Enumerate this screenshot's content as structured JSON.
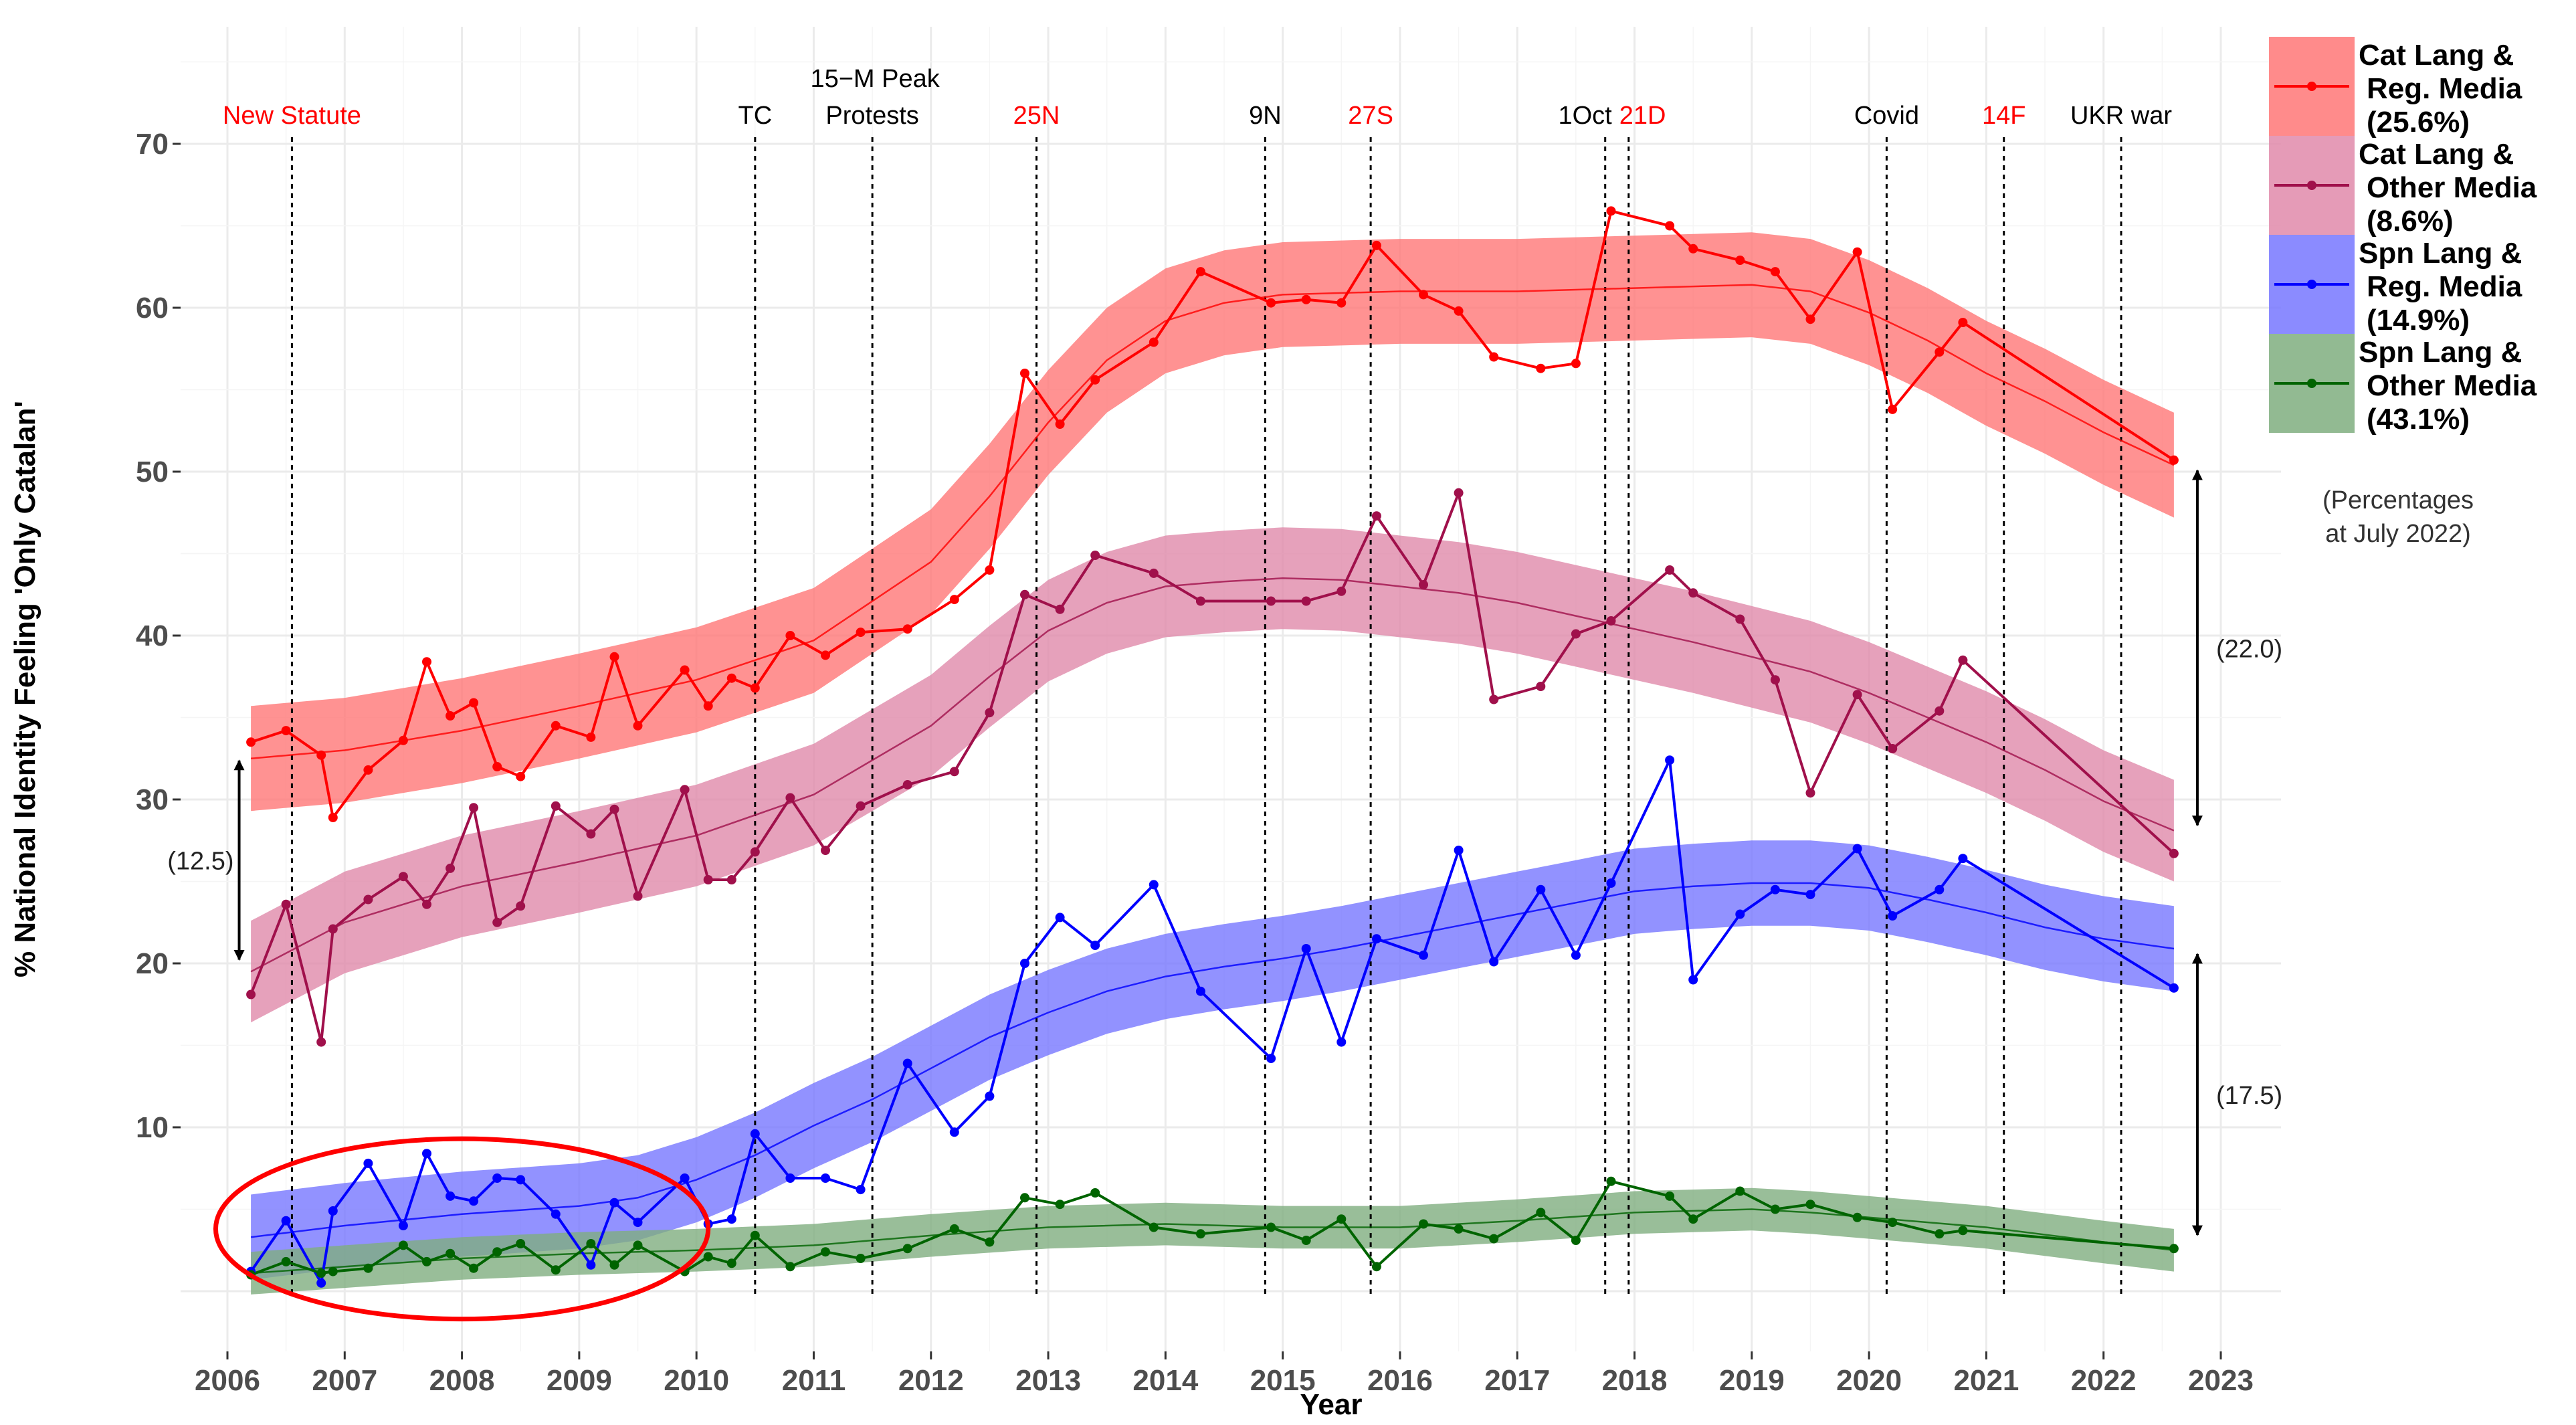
{
  "chart_data": {
    "type": "line",
    "xlabel": "Year",
    "ylabel": "% National Identity Feeling 'Only Catalan'",
    "xlim": [
      2005.6,
      2023.3
    ],
    "ylim": [
      -1,
      73
    ],
    "x_ticks": [
      2006,
      2007,
      2008,
      2009,
      2010,
      2011,
      2012,
      2013,
      2014,
      2015,
      2016,
      2017,
      2018,
      2019,
      2020,
      2021,
      2022,
      2023
    ],
    "y_ticks": [
      10,
      20,
      30,
      40,
      50,
      60,
      70
    ],
    "grid": true,
    "events": [
      {
        "label": "New Statute",
        "x": 2006.55,
        "color": "#ff0000"
      },
      {
        "label": "TC",
        "x": 2010.5,
        "color": "#000000"
      },
      {
        "label": "15−M Peak",
        "label2": "Protests",
        "x": 2011.5,
        "color": "#000000"
      },
      {
        "label": "25N",
        "x": 2012.9,
        "color": "#ff0000"
      },
      {
        "label": "9N",
        "x": 2014.85,
        "color": "#000000"
      },
      {
        "label": "27S",
        "x": 2015.75,
        "color": "#ff0000"
      },
      {
        "label": "1Oct",
        "x": 2017.75,
        "color": "#000000"
      },
      {
        "label": "21D",
        "x": 2017.95,
        "color": "#ff0000"
      },
      {
        "label": "Covid",
        "x": 2020.15,
        "color": "#000000"
      },
      {
        "label": "14F",
        "x": 2021.15,
        "color": "#ff0000"
      },
      {
        "label": "UKR war",
        "x": 2022.15,
        "color": "#000000"
      }
    ],
    "series": [
      {
        "name": "Cat Lang & Reg. Media (25.6%)",
        "legend_lines": [
          "Cat Lang &",
          "Reg. Media",
          "(25.6%)"
        ],
        "color": "#ff0000",
        "band_color": "#ff7777",
        "x": [
          2006.2,
          2006.5,
          2006.8,
          2006.9,
          2007.2,
          2007.5,
          2007.7,
          2007.9,
          2008.1,
          2008.3,
          2008.5,
          2008.8,
          2009.1,
          2009.3,
          2009.5,
          2009.9,
          2010.1,
          2010.3,
          2010.5,
          2010.8,
          2011.1,
          2011.4,
          2011.8,
          2012.2,
          2012.5,
          2012.8,
          2013.1,
          2013.4,
          2013.9,
          2014.3,
          2014.9,
          2015.2,
          2015.5,
          2015.8,
          2016.2,
          2016.5,
          2016.8,
          2017.2,
          2017.5,
          2017.8,
          2018.3,
          2018.5,
          2018.9,
          2019.2,
          2019.5,
          2019.9,
          2020.2,
          2020.6,
          2020.8,
          2022.6
        ],
        "y": [
          33.5,
          34.2,
          32.7,
          28.9,
          31.8,
          33.6,
          38.4,
          35.1,
          35.9,
          32,
          31.4,
          34.5,
          33.8,
          38.7,
          34.5,
          37.9,
          35.7,
          37.4,
          36.8,
          40,
          38.8,
          40.2,
          40.4,
          42.2,
          44,
          56,
          52.9,
          55.6,
          57.9,
          62.2,
          60.3,
          60.5,
          60.3,
          63.8,
          60.8,
          59.8,
          57,
          56.3,
          56.6,
          65.9,
          65,
          63.6,
          62.9,
          62.2,
          59.3,
          63.4,
          53.8,
          57.3,
          59.1,
          50.7
        ],
        "trend": [
          [
            2006.2,
            32.5
          ],
          [
            2007,
            33
          ],
          [
            2008,
            34.2
          ],
          [
            2009,
            35.7
          ],
          [
            2010,
            37.3
          ],
          [
            2011,
            39.7
          ],
          [
            2012,
            44.5
          ],
          [
            2012.5,
            48.5
          ],
          [
            2013,
            53
          ],
          [
            2013.5,
            56.8
          ],
          [
            2014,
            59.2
          ],
          [
            2014.5,
            60.3
          ],
          [
            2015,
            60.8
          ],
          [
            2016,
            61
          ],
          [
            2017,
            61
          ],
          [
            2018,
            61.2
          ],
          [
            2019,
            61.4
          ],
          [
            2019.5,
            61
          ],
          [
            2020,
            59.7
          ],
          [
            2020.5,
            58
          ],
          [
            2021,
            56
          ],
          [
            2021.5,
            54.3
          ],
          [
            2022,
            52.4
          ],
          [
            2022.6,
            50.4
          ]
        ],
        "half_width": 3.2
      },
      {
        "name": "Cat Lang & Other Media (8.6%)",
        "legend_lines": [
          "Cat Lang &",
          "Other Media",
          "(8.6%)"
        ],
        "color": "#a0104b",
        "band_color": "#e08aaa",
        "x": [
          2006.2,
          2006.5,
          2006.8,
          2006.9,
          2007.2,
          2007.5,
          2007.7,
          2007.9,
          2008.1,
          2008.3,
          2008.5,
          2008.8,
          2009.1,
          2009.3,
          2009.5,
          2009.9,
          2010.1,
          2010.3,
          2010.5,
          2010.8,
          2011.1,
          2011.4,
          2011.8,
          2012.2,
          2012.5,
          2012.8,
          2013.1,
          2013.4,
          2013.9,
          2014.3,
          2014.9,
          2015.2,
          2015.5,
          2015.8,
          2016.2,
          2016.5,
          2016.8,
          2017.2,
          2017.5,
          2017.8,
          2018.3,
          2018.5,
          2018.9,
          2019.2,
          2019.5,
          2019.9,
          2020.2,
          2020.6,
          2020.8,
          2022.6
        ],
        "y": [
          18.1,
          23.6,
          15.2,
          22.1,
          23.9,
          25.3,
          23.6,
          25.8,
          29.5,
          22.5,
          23.5,
          29.6,
          27.9,
          29.4,
          24.1,
          30.6,
          25.1,
          25.1,
          26.8,
          30.1,
          26.9,
          29.6,
          30.9,
          31.7,
          35.3,
          42.5,
          41.6,
          44.9,
          43.8,
          42.1,
          42.1,
          42.1,
          42.7,
          47.3,
          43.1,
          48.7,
          36.1,
          36.9,
          40.1,
          40.9,
          44,
          42.6,
          41,
          37.3,
          30.4,
          36.4,
          33.1,
          35.4,
          38.5,
          26.7
        ],
        "trend": [
          [
            2006.2,
            19.5
          ],
          [
            2007,
            22.5
          ],
          [
            2008,
            24.7
          ],
          [
            2009,
            26.2
          ],
          [
            2010,
            27.8
          ],
          [
            2011,
            30.3
          ],
          [
            2012,
            34.5
          ],
          [
            2012.5,
            37.5
          ],
          [
            2013,
            40.3
          ],
          [
            2013.5,
            42
          ],
          [
            2014,
            43
          ],
          [
            2014.5,
            43.3
          ],
          [
            2015,
            43.5
          ],
          [
            2015.5,
            43.4
          ],
          [
            2016,
            43
          ],
          [
            2016.5,
            42.6
          ],
          [
            2017,
            42
          ],
          [
            2017.5,
            41.2
          ],
          [
            2018,
            40.4
          ],
          [
            2018.5,
            39.6
          ],
          [
            2019,
            38.7
          ],
          [
            2019.5,
            37.8
          ],
          [
            2020,
            36.5
          ],
          [
            2020.5,
            35
          ],
          [
            2021,
            33.5
          ],
          [
            2021.5,
            31.8
          ],
          [
            2022,
            29.9
          ],
          [
            2022.6,
            28.1
          ]
        ],
        "half_width": 3.1
      },
      {
        "name": "Spn Lang & Reg. Media (14.9%)",
        "legend_lines": [
          "Spn Lang &",
          "Reg. Media",
          "(14.9%)"
        ],
        "color": "#0000ff",
        "band_color": "#7777ff",
        "x": [
          2006.2,
          2006.5,
          2006.8,
          2006.9,
          2007.2,
          2007.5,
          2007.7,
          2007.9,
          2008.1,
          2008.3,
          2008.5,
          2008.8,
          2009.1,
          2009.3,
          2009.5,
          2009.9,
          2010.1,
          2010.3,
          2010.5,
          2010.8,
          2011.1,
          2011.4,
          2011.8,
          2012.2,
          2012.5,
          2012.8,
          2013.1,
          2013.4,
          2013.9,
          2014.3,
          2014.9,
          2015.2,
          2015.5,
          2015.8,
          2016.2,
          2016.5,
          2016.8,
          2017.2,
          2017.5,
          2017.8,
          2018.3,
          2018.5,
          2018.9,
          2019.2,
          2019.5,
          2019.9,
          2020.2,
          2020.6,
          2020.8,
          2022.6
        ],
        "y": [
          1.2,
          4.3,
          0.5,
          4.9,
          7.8,
          4,
          8.4,
          5.8,
          5.5,
          6.9,
          6.8,
          4.7,
          1.6,
          5.4,
          4.2,
          6.9,
          4.1,
          4.4,
          9.6,
          6.9,
          6.9,
          6.2,
          13.9,
          9.7,
          11.9,
          20,
          22.8,
          21.1,
          24.8,
          18.3,
          14.2,
          20.9,
          15.2,
          21.5,
          20.5,
          26.9,
          20.1,
          24.5,
          20.5,
          24.9,
          32.4,
          19,
          23,
          24.5,
          24.2,
          27,
          22.9,
          24.5,
          26.4,
          18.5
        ],
        "trend": [
          [
            2006.2,
            3.3
          ],
          [
            2007,
            4
          ],
          [
            2008,
            4.7
          ],
          [
            2009,
            5.2
          ],
          [
            2009.5,
            5.7
          ],
          [
            2010,
            6.8
          ],
          [
            2010.5,
            8.3
          ],
          [
            2011,
            10.1
          ],
          [
            2011.5,
            11.7
          ],
          [
            2012,
            13.6
          ],
          [
            2012.5,
            15.5
          ],
          [
            2013,
            17
          ],
          [
            2013.5,
            18.3
          ],
          [
            2014,
            19.2
          ],
          [
            2014.5,
            19.8
          ],
          [
            2015,
            20.3
          ],
          [
            2015.5,
            20.9
          ],
          [
            2016,
            21.6
          ],
          [
            2016.5,
            22.3
          ],
          [
            2017,
            23
          ],
          [
            2017.5,
            23.7
          ],
          [
            2018,
            24.4
          ],
          [
            2018.5,
            24.7
          ],
          [
            2019,
            24.9
          ],
          [
            2019.5,
            24.9
          ],
          [
            2020,
            24.6
          ],
          [
            2020.5,
            23.9
          ],
          [
            2021,
            23.1
          ],
          [
            2021.5,
            22.2
          ],
          [
            2022,
            21.5
          ],
          [
            2022.6,
            20.9
          ]
        ],
        "half_width": 2.6
      },
      {
        "name": "Spn Lang & Other Media (43.1%)",
        "legend_lines": [
          "Spn Lang &",
          "Other Media",
          "(43.1%)"
        ],
        "color": "#006400",
        "band_color": "#7fae7f",
        "x": [
          2006.2,
          2006.5,
          2006.8,
          2006.9,
          2007.2,
          2007.5,
          2007.7,
          2007.9,
          2008.1,
          2008.3,
          2008.5,
          2008.8,
          2009.1,
          2009.3,
          2009.5,
          2009.9,
          2010.1,
          2010.3,
          2010.5,
          2010.8,
          2011.1,
          2011.4,
          2011.8,
          2012.2,
          2012.5,
          2012.8,
          2013.1,
          2013.4,
          2013.9,
          2014.3,
          2014.9,
          2015.2,
          2015.5,
          2015.8,
          2016.2,
          2016.5,
          2016.8,
          2017.2,
          2017.5,
          2017.8,
          2018.3,
          2018.5,
          2018.9,
          2019.2,
          2019.5,
          2019.9,
          2020.2,
          2020.6,
          2020.8,
          2022.6
        ],
        "y": [
          1,
          1.8,
          1.1,
          1.2,
          1.4,
          2.8,
          1.8,
          2.3,
          1.4,
          2.4,
          2.9,
          1.3,
          2.9,
          1.6,
          2.8,
          1.2,
          2.1,
          1.7,
          3.4,
          1.5,
          2.4,
          2,
          2.6,
          3.8,
          3,
          5.7,
          5.3,
          6,
          3.9,
          3.5,
          3.9,
          3.1,
          4.4,
          1.5,
          4.1,
          3.8,
          3.2,
          4.8,
          3.1,
          6.7,
          5.8,
          4.4,
          6.1,
          5,
          5.3,
          4.5,
          4.2,
          3.5,
          3.7,
          2.6
        ],
        "trend": [
          [
            2006.2,
            1.1
          ],
          [
            2007,
            1.5
          ],
          [
            2008,
            2
          ],
          [
            2009,
            2.3
          ],
          [
            2010,
            2.5
          ],
          [
            2011,
            2.8
          ],
          [
            2012,
            3.4
          ],
          [
            2013,
            3.9
          ],
          [
            2014,
            4.1
          ],
          [
            2015,
            3.9
          ],
          [
            2016,
            3.9
          ],
          [
            2017,
            4.3
          ],
          [
            2018,
            4.8
          ],
          [
            2019,
            5
          ],
          [
            2019.5,
            4.8
          ],
          [
            2020,
            4.5
          ],
          [
            2021,
            3.9
          ],
          [
            2022,
            3
          ],
          [
            2022.6,
            2.5
          ]
        ],
        "half_width": 1.3
      }
    ],
    "gap_annotations": [
      {
        "label": "(12.5)",
        "x": 2006.1,
        "y_top": 32.7,
        "y_bottom": 19.9
      },
      {
        "label": "(22.0)",
        "x": 2022.8,
        "y_top": 50.4,
        "y_bottom": 28.1
      },
      {
        "label": "(17.5)",
        "x": 2022.8,
        "y_top": 20.9,
        "y_bottom": 3.1
      }
    ],
    "highlight_ellipse": {
      "cx": 2008.0,
      "cy": 3.8,
      "rx_years": 2.1,
      "ry_units": 5.5,
      "color": "#ff0000"
    },
    "note_lines": [
      "(Percentages",
      "at July 2022)"
    ]
  }
}
